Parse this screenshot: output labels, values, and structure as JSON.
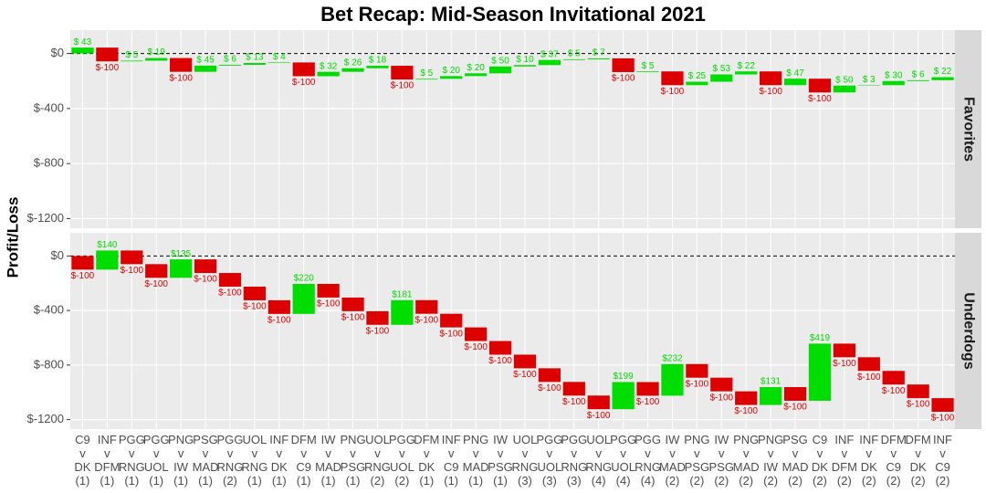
{
  "chart_data": {
    "type": "waterfall",
    "title": "Bet Recap: Mid-Season Invitational 2021",
    "y_label": "Profit/Loss",
    "categories": [
      "C9\nv\nDK\n(1)",
      "INF\nv\nDFM\n(1)",
      "PGG\nv\nRNG\n(1)",
      "PGG\nv\nUOL\n(1)",
      "PNG\nv\nIW\n(1)",
      "PSG\nv\nMAD\n(1)",
      "PGG\nv\nRNG\n(2)",
      "UOL\nv\nRNG\n(1)",
      "INF\nv\nDK\n(1)",
      "DFM\nv\nC9\n(1)",
      "IW\nv\nMAD\n(1)",
      "PNG\nv\nPSG\n(1)",
      "UOL\nv\nRNG\n(2)",
      "PGG\nv\nUOL\n(2)",
      "DFM\nv\nDK\n(1)",
      "INF\nv\nC9\n(1)",
      "PNG\nv\nMAD\n(1)",
      "IW\nv\nPSG\n(1)",
      "UOL\nv\nRNG\n(3)",
      "PGG\nv\nUOL\n(3)",
      "PGG\nv\nRNG\n(3)",
      "UOL\nv\nRNG\n(4)",
      "PGG\nv\nUOL\n(4)",
      "PGG\nv\nRNG\n(4)",
      "IW\nv\nMAD\n(2)",
      "PNG\nv\nPSG\n(2)",
      "IW\nv\nPSG\n(2)",
      "PNG\nv\nMAD\n(2)",
      "PNG\nv\nIW\n(2)",
      "PSG\nv\nMAD\n(2)",
      "C9\nv\nDK\n(2)",
      "INF\nv\nDFM\n(2)",
      "INF\nv\nDK\n(2)",
      "DFM\nv\nC9\n(2)",
      "DFM\nv\nDK\n(2)",
      "INF\nv\nC9\n(2)"
    ],
    "ylim": [
      -1270,
      170
    ],
    "yticks": [
      {
        "value": 0,
        "label": "$0"
      },
      {
        "value": -400,
        "label": "$-400"
      },
      {
        "value": -800,
        "label": "$-800"
      },
      {
        "value": -1200,
        "label": "$-1200"
      }
    ],
    "hline": 0,
    "grid": true,
    "colors": {
      "up": "#00dd00",
      "down": "#dd0000"
    },
    "panels": [
      {
        "name": "Favorites",
        "values": [
          43,
          -100,
          5,
          19,
          -100,
          45,
          6,
          13,
          4,
          -100,
          32,
          26,
          18,
          -100,
          5,
          20,
          20,
          50,
          10,
          37,
          5,
          7,
          -100,
          5,
          -100,
          25,
          53,
          22,
          -100,
          47,
          -100,
          50,
          3,
          30,
          6,
          22
        ],
        "value_labels": [
          "$ 43",
          "$-100",
          "$ 5",
          "$ 19",
          "$-100",
          "$ 45",
          "$ 6",
          "$ 13",
          "$ 4",
          "$-100",
          "$ 32",
          "$ 26",
          "$ 18",
          "$-100",
          "$ 5",
          "$ 20",
          "$ 20",
          "$ 50",
          "$ 10",
          "$ 37",
          "$ 5",
          "$ 7",
          "$-100",
          "$ 5",
          "$-100",
          "$ 25",
          "$ 53",
          "$ 22",
          "$-100",
          "$ 47",
          "$-100",
          "$ 50",
          "$ 3",
          "$ 30",
          "$ 6",
          "$ 22"
        ]
      },
      {
        "name": "Underdogs",
        "values": [
          -100,
          140,
          -100,
          -100,
          135,
          -100,
          -100,
          -100,
          -100,
          220,
          -100,
          -100,
          -100,
          181,
          -100,
          -100,
          -100,
          -100,
          -100,
          -100,
          -100,
          -100,
          199,
          -100,
          232,
          -100,
          -100,
          -100,
          131,
          -100,
          419,
          -100,
          -100,
          -100,
          -100,
          -100
        ],
        "value_labels": [
          "$-100",
          "$140",
          "$-100",
          "$-100",
          "$135",
          "$-100",
          "$-100",
          "$-100",
          "$-100",
          "$220",
          "$-100",
          "$-100",
          "$-100",
          "$181",
          "$-100",
          "$-100",
          "$-100",
          "$-100",
          "$-100",
          "$-100",
          "$-100",
          "$-100",
          "$199",
          "$-100",
          "$232",
          "$-100",
          "$-100",
          "$-100",
          "$131",
          "$-100",
          "$419",
          "$-100",
          "$-100",
          "$-100",
          "$-100",
          "$-100"
        ]
      }
    ]
  }
}
